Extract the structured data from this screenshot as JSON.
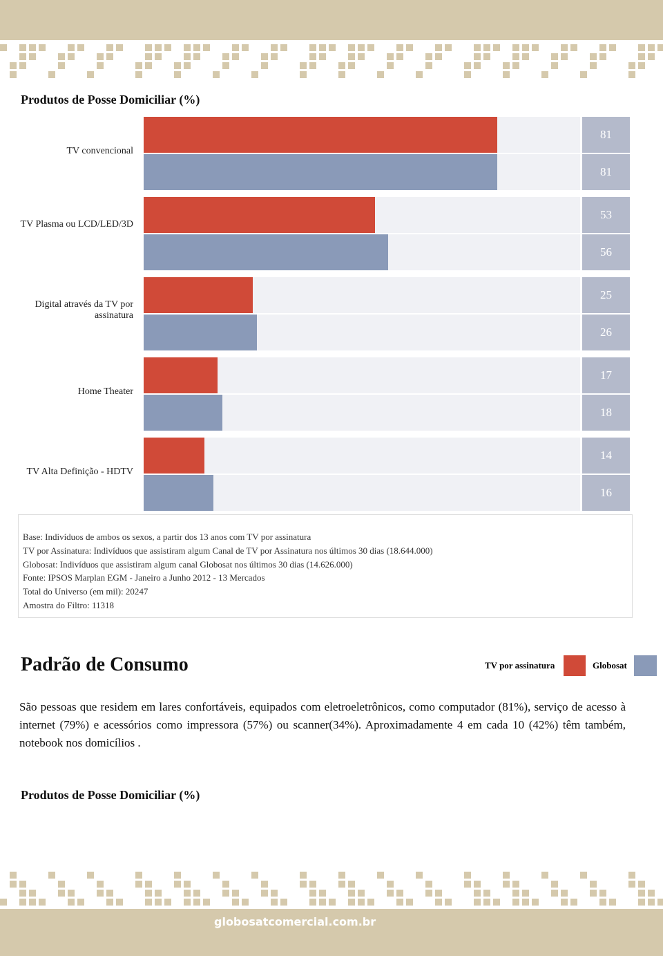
{
  "chart_data": {
    "type": "bar",
    "title": "Produtos de Posse Domiciliar (%)",
    "categories": [
      "TV convencional",
      "TV Plasma ou LCD/LED/3D",
      "Digital através da TV por assinatura",
      "Home Theater",
      "TV Alta Definição - HDTV"
    ],
    "series": [
      {
        "name": "TV por assinatura",
        "color": "#d04a38",
        "values": [
          81,
          53,
          25,
          17,
          14
        ]
      },
      {
        "name": "Globosat",
        "color": "#8a9ab8",
        "values": [
          81,
          56,
          26,
          18,
          16
        ]
      }
    ],
    "xlim": [
      0,
      100
    ]
  },
  "notes": [
    "Base: Indivíduos de ambos os sexos, a partir dos 13 anos com TV por assinatura",
    "TV por Assinatura: Indivíduos que assistiram algum Canal de TV por Assinatura nos últimos 30 dias (18.644.000)",
    "Globosat: Indivíduos que assistiram algum canal Globosat nos últimos 30 dias (14.626.000)",
    "Fonte: IPSOS Marplan EGM - Janeiro a Junho 2012 - 13 Mercados",
    "Total do Universo (em mil): 20247",
    "Amostra do Filtro: 11318"
  ],
  "section": {
    "title": "Padrão de Consumo",
    "paragraph": "São pessoas que residem em lares confortáveis, equipados com eletroeletrônicos, como computador (81%), serviço de acesso à internet (79%) e acessórios como impressora (57%) ou scanner(34%). Aproximadamente 4 em cada 10 (42%) têm também, notebook nos domicílios ."
  },
  "second_title": "Produtos de Posse Domiciliar (%)",
  "footer": {
    "site": "globosatcomercial.com.br"
  }
}
